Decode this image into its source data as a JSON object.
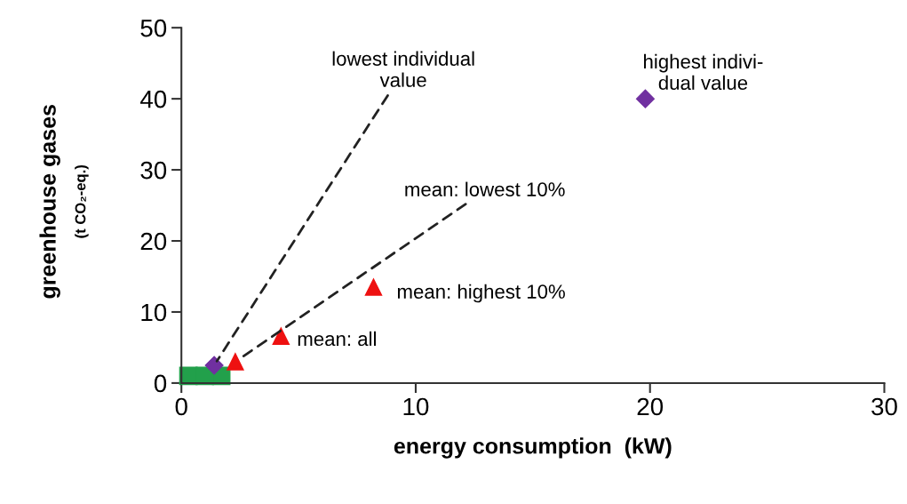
{
  "chart_data": {
    "type": "scatter",
    "xlabel": "energy consumption  (kW)",
    "ylabel": "greenhouse gases\n(t CO₂-eq.)",
    "xlim": [
      0,
      30
    ],
    "xticks": [
      0,
      10,
      20,
      30
    ],
    "ylim": [
      0,
      50
    ],
    "yticks": [
      0,
      10,
      20,
      30,
      40,
      50
    ],
    "grid": false,
    "legend": false,
    "series": [
      {
        "color": "#22a04b",
        "marker": "square",
        "x": [
          0.3,
          1.0,
          1.7
        ],
        "values": [
          1,
          1,
          1
        ]
      },
      {
        "color": "#7030a0",
        "marker": "diamond",
        "x": [
          1.4,
          19.8
        ],
        "values": [
          2.5,
          40
        ]
      },
      {
        "color": "#ee1111",
        "marker": "triangle",
        "x": [
          2.3,
          4.25,
          8.2
        ],
        "values": [
          3.0,
          6.6,
          13.5
        ]
      }
    ],
    "annotations": [
      {
        "text": "lowest individual\nvalue",
        "x": 1.4,
        "y": 2.5
      },
      {
        "text": "mean: lowest 10%",
        "x": 2.3,
        "y": 3.0
      },
      {
        "text": "mean: highest 10%",
        "x": 8.2,
        "y": 13.5
      },
      {
        "text": "mean: all",
        "x": 4.25,
        "y": 6.6
      },
      {
        "text": "highest indivi-\ndual value",
        "x": 19.8,
        "y": 40
      }
    ]
  }
}
